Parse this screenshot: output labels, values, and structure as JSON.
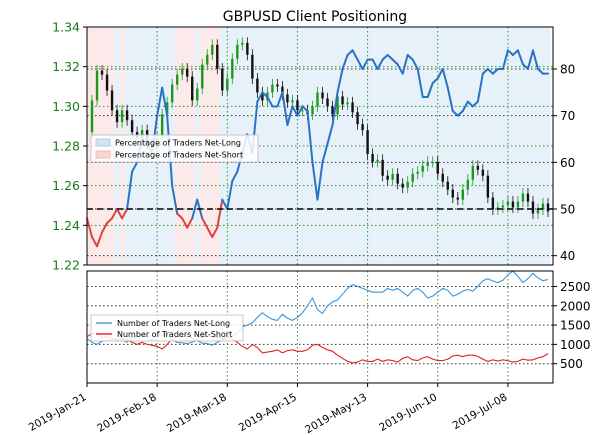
{
  "title": "GBPUSD Client Positioning",
  "chart_data": [
    {
      "type": "candlestick-line",
      "title": "GBPUSD Client Positioning",
      "price_axis": {
        "ticks": [
          "1.22",
          "1.24",
          "1.26",
          "1.28",
          "1.30",
          "1.32",
          "1.34"
        ],
        "range": [
          1.22,
          1.34
        ],
        "color": "#1a7a1a"
      },
      "pct_axis": {
        "ticks": [
          "40",
          "50",
          "60",
          "70",
          "80"
        ],
        "range": [
          38,
          89
        ]
      },
      "x_ticks": [
        "2019-Jan-21",
        "2019-Feb-18",
        "2019-Mar-18",
        "2019-Apr-15",
        "2019-May-13",
        "2019-Jun-10",
        "2019-Jul-08"
      ],
      "reference_line": 50,
      "grid": true,
      "legend": {
        "placement": "middle-left",
        "entries": [
          {
            "label": "Percentage of Traders Net-Long",
            "color": "#a9cfee"
          },
          {
            "label": "Percentage of Traders Net-Short",
            "color": "#f2b9b9"
          }
        ]
      },
      "percentage_net_long_series": {
        "x_day": [
          0,
          2,
          4,
          6,
          8,
          10,
          12,
          14,
          16,
          18,
          20,
          22,
          24,
          26,
          28,
          30,
          32,
          34,
          36,
          38,
          40,
          42,
          44,
          46,
          48,
          50,
          52,
          54,
          56,
          58,
          60,
          62,
          64,
          66,
          68,
          70,
          72,
          74,
          76,
          78,
          80,
          82,
          84,
          86,
          88,
          90,
          92,
          94,
          96,
          98,
          100,
          102,
          104,
          106,
          108,
          110,
          112,
          114,
          116,
          118,
          120,
          122,
          124,
          126,
          128,
          130,
          132,
          134,
          136,
          138,
          140,
          142,
          144,
          146,
          148,
          150,
          152,
          154,
          156,
          158,
          160,
          162,
          164,
          166,
          168,
          170,
          172,
          174,
          176,
          178,
          180,
          182,
          184
        ],
        "values": [
          48,
          44,
          42,
          45,
          47,
          48,
          50,
          48,
          50,
          58,
          60,
          65,
          64,
          62,
          70,
          76,
          70,
          55,
          49,
          48,
          46,
          48,
          52,
          48,
          46,
          44,
          46,
          52,
          50,
          56,
          58,
          62,
          66,
          62,
          73,
          75,
          74,
          72,
          72,
          75,
          68,
          72,
          70,
          72,
          71,
          60,
          52,
          60,
          64,
          68,
          75,
          80,
          83,
          84,
          82,
          80,
          82,
          82,
          80,
          82,
          83,
          82,
          81,
          79,
          83,
          82,
          80,
          74,
          74,
          77,
          78,
          80,
          76,
          71,
          70,
          71,
          73,
          72,
          73,
          79,
          80,
          79,
          80,
          80,
          84,
          83,
          84,
          81,
          80,
          84,
          80,
          79,
          79
        ]
      },
      "price_close": {
        "x_day": [
          0,
          2,
          4,
          6,
          8,
          10,
          12,
          14,
          16,
          18,
          20,
          22,
          24,
          26,
          28,
          30,
          32,
          34,
          36,
          38,
          40,
          42,
          44,
          46,
          48,
          50,
          52,
          54,
          56,
          58,
          60,
          62,
          64,
          66,
          68,
          70,
          72,
          74,
          76,
          78,
          80,
          82,
          84,
          86,
          88,
          90,
          92,
          94,
          96,
          98,
          100,
          102,
          104,
          106,
          108,
          110,
          112,
          114,
          116,
          118,
          120,
          122,
          124,
          126,
          128,
          130,
          132,
          134,
          136,
          138,
          140,
          142,
          144,
          146,
          148,
          150,
          152,
          154,
          156,
          158,
          160,
          162,
          164,
          166,
          168,
          170,
          172,
          174,
          176,
          178,
          180,
          182,
          184
        ],
        "values": [
          1.287,
          1.303,
          1.318,
          1.316,
          1.308,
          1.298,
          1.292,
          1.298,
          1.293,
          1.287,
          1.284,
          1.288,
          1.281,
          1.279,
          1.284,
          1.296,
          1.302,
          1.311,
          1.316,
          1.319,
          1.315,
          1.303,
          1.309,
          1.321,
          1.326,
          1.331,
          1.319,
          1.308,
          1.314,
          1.324,
          1.331,
          1.332,
          1.326,
          1.314,
          1.307,
          1.303,
          1.307,
          1.311,
          1.31,
          1.306,
          1.302,
          1.303,
          1.298,
          1.298,
          1.296,
          1.3,
          1.307,
          1.304,
          1.3,
          1.296,
          1.305,
          1.301,
          1.302,
          1.297,
          1.291,
          1.288,
          1.276,
          1.272,
          1.273,
          1.265,
          1.263,
          1.266,
          1.261,
          1.259,
          1.262,
          1.266,
          1.267,
          1.27,
          1.272,
          1.272,
          1.266,
          1.262,
          1.258,
          1.254,
          1.253,
          1.258,
          1.263,
          1.27,
          1.268,
          1.265,
          1.254,
          1.248,
          1.249,
          1.25,
          1.252,
          1.249,
          1.252,
          1.256,
          1.252,
          1.246,
          1.248,
          1.251,
          1.247
        ]
      }
    },
    {
      "type": "line",
      "y_axis": {
        "ticks": [
          "500",
          "1000",
          "1500",
          "2000",
          "2500"
        ],
        "range": [
          0,
          2900
        ]
      },
      "grid": true,
      "legend": {
        "placement": "middle-left",
        "entries": [
          {
            "label": "Number of Traders Net-Long",
            "color": "#3c96dc"
          },
          {
            "label": "Number of Traders Net-Short",
            "color": "#e02020"
          }
        ]
      },
      "x_day": [
        0,
        2,
        4,
        6,
        8,
        10,
        12,
        14,
        16,
        18,
        20,
        22,
        24,
        26,
        28,
        30,
        32,
        34,
        36,
        38,
        40,
        42,
        44,
        46,
        48,
        50,
        52,
        54,
        56,
        58,
        60,
        62,
        64,
        66,
        68,
        70,
        72,
        74,
        76,
        78,
        80,
        82,
        84,
        86,
        88,
        90,
        92,
        94,
        96,
        98,
        100,
        102,
        104,
        106,
        108,
        110,
        112,
        114,
        116,
        118,
        120,
        122,
        124,
        126,
        128,
        130,
        132,
        134,
        136,
        138,
        140,
        142,
        144,
        146,
        148,
        150,
        152,
        154,
        156,
        158,
        160,
        162,
        164,
        166,
        168,
        170,
        172,
        174,
        176,
        178,
        180,
        182,
        184
      ],
      "series": [
        {
          "name": "Number of Traders Net-Long",
          "color": "#3c96dc",
          "values": [
            1150,
            1050,
            1000,
            1080,
            1100,
            1120,
            1150,
            1100,
            1060,
            1180,
            1200,
            1250,
            1200,
            1100,
            1220,
            1260,
            1230,
            1120,
            1050,
            1040,
            1020,
            1060,
            1100,
            1030,
            1020,
            980,
            1050,
            1120,
            1150,
            1200,
            1300,
            1450,
            1500,
            1560,
            1700,
            1820,
            1720,
            1650,
            1620,
            1780,
            1680,
            1620,
            1700,
            1820,
            2000,
            2200,
            1900,
            1800,
            2000,
            2100,
            2150,
            2300,
            2450,
            2550,
            2500,
            2450,
            2400,
            2350,
            2350,
            2350,
            2450,
            2400,
            2450,
            2350,
            2250,
            2400,
            2450,
            2350,
            2200,
            2250,
            2350,
            2450,
            2400,
            2250,
            2300,
            2380,
            2420,
            2380,
            2500,
            2650,
            2700,
            2640,
            2600,
            2660,
            2800,
            2900,
            2760,
            2600,
            2700,
            2840,
            2720,
            2650,
            2680
          ]
        },
        {
          "name": "Number of Traders Net-Short",
          "color": "#e02020",
          "values": [
            1200,
            1280,
            1300,
            1180,
            1200,
            1160,
            1100,
            1150,
            1120,
            1050,
            1000,
            1050,
            1000,
            980,
            950,
            880,
            1000,
            1150,
            1200,
            1200,
            1250,
            1160,
            1120,
            1180,
            1220,
            1200,
            1180,
            1150,
            1200,
            1150,
            1050,
            950,
            880,
            1000,
            920,
            780,
            800,
            820,
            860,
            780,
            840,
            860,
            820,
            820,
            860,
            980,
            1000,
            920,
            860,
            820,
            720,
            640,
            560,
            520,
            540,
            600,
            560,
            560,
            620,
            560,
            600,
            580,
            540,
            640,
            680,
            600,
            580,
            650,
            680,
            620,
            580,
            580,
            620,
            700,
            720,
            680,
            720,
            720,
            690,
            620,
            560,
            600,
            570,
            600,
            580,
            540,
            560,
            620,
            590,
            600,
            650,
            680,
            760
          ]
        }
      ]
    }
  ]
}
